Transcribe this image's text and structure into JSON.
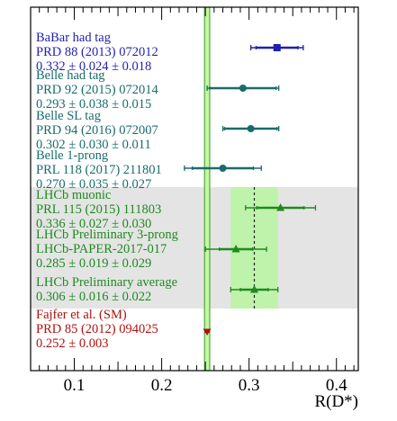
{
  "chart_data": {
    "type": "scatter",
    "title": "",
    "xlabel": "R(D*)",
    "ylabel": "",
    "xlim": [
      0.05,
      0.425
    ],
    "x_ticks": [
      0.1,
      0.2,
      0.3,
      0.4
    ],
    "x_tick_labels": [
      "0.1",
      "0.2",
      "0.3",
      "0.4"
    ],
    "grid": false,
    "sm_band": {
      "label": "Fajfer et al. (SM)",
      "reference": "PRD 85 (2012) 094025",
      "value_text": "0.252 ± 0.003",
      "central": 0.252,
      "uncertainty": 0.003,
      "color": "#b01010"
    },
    "lhcb_average_band": {
      "central": 0.306,
      "low": 0.279,
      "high": 0.333
    },
    "measurements": [
      {
        "name": "BaBar had tag",
        "reference": "PRD 88 (2013) 072012",
        "value_text": "0.332 ± 0.024 ± 0.018",
        "central": 0.332,
        "stat_low": 0.308,
        "stat_high": 0.356,
        "tot_low": 0.302,
        "tot_high": 0.362,
        "marker": "square",
        "color": "#1f1fb0"
      },
      {
        "name": "Belle had tag",
        "reference": "PRD 92 (2015) 072014",
        "value_text": "0.293 ± 0.038 ± 0.015",
        "central": 0.293,
        "stat_low": 0.255,
        "stat_high": 0.331,
        "tot_low": 0.252,
        "tot_high": 0.334,
        "marker": "circle",
        "color": "#1a6b6b"
      },
      {
        "name": "Belle SL tag",
        "reference": "PRD 94 (2016) 072007",
        "value_text": "0.302 ± 0.030 ± 0.011",
        "central": 0.302,
        "stat_low": 0.272,
        "stat_high": 0.332,
        "tot_low": 0.27,
        "tot_high": 0.334,
        "marker": "circle",
        "color": "#1a6b6b"
      },
      {
        "name": "Belle 1-prong",
        "reference": "PRL 118 (2017) 211801",
        "value_text": "0.270 ± 0.035 ± 0.027",
        "central": 0.27,
        "stat_low": 0.235,
        "stat_high": 0.305,
        "tot_low": 0.226,
        "tot_high": 0.314,
        "marker": "circle",
        "color": "#1a6b6b"
      },
      {
        "name": "LHCb muonic",
        "reference": "PRL 115 (2015) 111803",
        "value_text": "0.336 ± 0.027 ± 0.030",
        "central": 0.336,
        "stat_low": 0.309,
        "stat_high": 0.363,
        "tot_low": 0.296,
        "tot_high": 0.376,
        "marker": "triangle",
        "color": "#1e8a1e"
      },
      {
        "name": "LHCb Preliminary 3-prong",
        "reference": "LHCb-PAPER-2017-017",
        "value_text": "0.285 ± 0.019 ± 0.029",
        "central": 0.285,
        "stat_low": 0.266,
        "stat_high": 0.304,
        "tot_low": 0.25,
        "tot_high": 0.32,
        "marker": "triangle",
        "color": "#1e8a1e"
      },
      {
        "name": "LHCb Preliminary average",
        "reference": "",
        "value_text": "0.306 ± 0.016 ± 0.022",
        "central": 0.306,
        "stat_low": 0.29,
        "stat_high": 0.322,
        "tot_low": 0.279,
        "tot_high": 0.333,
        "marker": "triangle",
        "color": "#1e8a1e"
      }
    ]
  }
}
